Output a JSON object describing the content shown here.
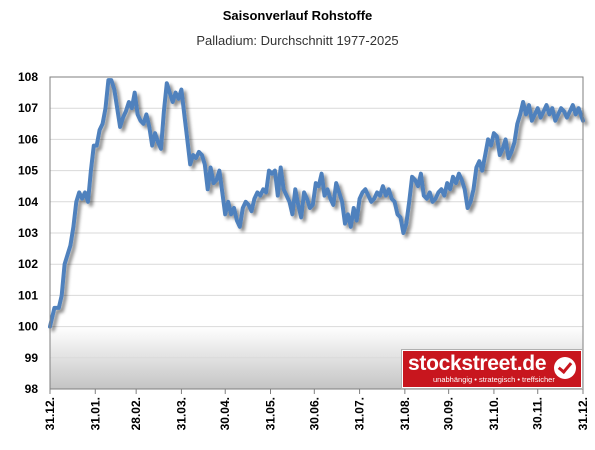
{
  "chart_data": {
    "type": "line",
    "title": "Saisonverlauf Rohstoffe",
    "subtitle": "Palladium: Durchschnitt 1977-2025",
    "xlabel": "",
    "ylabel": "",
    "ylim": [
      98,
      108
    ],
    "yticks": [
      98,
      99,
      100,
      101,
      102,
      103,
      104,
      105,
      106,
      107,
      108
    ],
    "xlim": [
      0,
      365
    ],
    "xticks": [
      {
        "x": 0,
        "label": "31.12."
      },
      {
        "x": 31,
        "label": "31.01."
      },
      {
        "x": 59,
        "label": "28.02."
      },
      {
        "x": 90,
        "label": "31.03."
      },
      {
        "x": 120,
        "label": "30.04."
      },
      {
        "x": 151,
        "label": "31.05."
      },
      {
        "x": 181,
        "label": "30.06."
      },
      {
        "x": 212,
        "label": "31.07."
      },
      {
        "x": 243,
        "label": "31.08."
      },
      {
        "x": 273,
        "label": "30.09."
      },
      {
        "x": 304,
        "label": "31.10."
      },
      {
        "x": 334,
        "label": "30.11."
      },
      {
        "x": 365,
        "label": "31.12."
      }
    ],
    "grid": true,
    "line_color": "#4f81bd",
    "series": [
      {
        "name": "",
        "x": [
          0,
          3,
          6,
          8,
          10,
          12,
          14,
          16,
          18,
          20,
          22,
          24,
          26,
          28,
          30,
          32,
          34,
          36,
          38,
          40,
          42,
          44,
          46,
          48,
          50,
          52,
          54,
          56,
          58,
          60,
          62,
          64,
          66,
          68,
          70,
          72,
          74,
          76,
          78,
          80,
          82,
          84,
          86,
          88,
          90,
          92,
          94,
          96,
          98,
          100,
          102,
          104,
          106,
          108,
          110,
          112,
          114,
          116,
          118,
          120,
          122,
          124,
          126,
          128,
          130,
          132,
          134,
          136,
          138,
          140,
          142,
          144,
          146,
          148,
          150,
          152,
          154,
          156,
          158,
          160,
          162,
          164,
          166,
          168,
          170,
          172,
          174,
          176,
          178,
          180,
          182,
          184,
          186,
          188,
          190,
          192,
          194,
          196,
          198,
          200,
          202,
          204,
          206,
          208,
          210,
          212,
          214,
          216,
          218,
          220,
          222,
          224,
          226,
          228,
          230,
          232,
          234,
          236,
          238,
          240,
          242,
          244,
          246,
          248,
          250,
          252,
          254,
          256,
          258,
          260,
          262,
          264,
          266,
          268,
          270,
          272,
          274,
          276,
          278,
          280,
          282,
          284,
          286,
          288,
          290,
          292,
          294,
          296,
          298,
          300,
          302,
          304,
          306,
          308,
          310,
          312,
          314,
          316,
          318,
          320,
          322,
          324,
          326,
          328,
          330,
          332,
          334,
          336,
          338,
          340,
          342,
          344,
          346,
          348,
          350,
          352,
          354,
          356,
          358,
          360,
          362,
          365
        ],
        "values": [
          100.0,
          100.6,
          100.6,
          101.0,
          102.0,
          102.3,
          102.6,
          103.2,
          104.0,
          104.3,
          104.1,
          104.3,
          104.0,
          105.0,
          105.8,
          105.8,
          106.3,
          106.5,
          107.0,
          107.9,
          107.9,
          107.6,
          107.0,
          106.4,
          106.7,
          106.9,
          107.2,
          107.0,
          107.5,
          106.8,
          106.6,
          106.5,
          106.8,
          106.4,
          105.8,
          106.2,
          105.9,
          105.7,
          106.9,
          107.8,
          107.5,
          107.2,
          107.5,
          107.3,
          107.6,
          106.8,
          106.0,
          105.2,
          105.5,
          105.4,
          105.6,
          105.5,
          105.2,
          104.4,
          105.1,
          104.6,
          104.7,
          105.0,
          104.3,
          103.6,
          104.0,
          103.6,
          103.8,
          103.4,
          103.2,
          103.8,
          104.0,
          103.9,
          103.7,
          104.1,
          104.3,
          104.2,
          104.4,
          104.3,
          105.0,
          104.9,
          105.0,
          104.2,
          105.1,
          104.4,
          104.2,
          104.0,
          103.6,
          104.4,
          103.9,
          103.5,
          104.3,
          104.1,
          103.8,
          103.9,
          104.6,
          104.5,
          104.9,
          104.2,
          104.4,
          104.1,
          103.9,
          104.6,
          104.3,
          104.0,
          103.3,
          103.6,
          103.2,
          103.8,
          103.4,
          104.1,
          104.3,
          104.4,
          104.2,
          104.0,
          104.1,
          104.3,
          104.2,
          104.5,
          104.2,
          104.4,
          104.1,
          104.0,
          103.6,
          103.5,
          103.0,
          103.3,
          104.0,
          104.8,
          104.7,
          104.5,
          104.9,
          104.2,
          104.1,
          104.3,
          104.0,
          104.1,
          104.3,
          104.4,
          104.2,
          104.6,
          104.4,
          104.8,
          104.6,
          104.9,
          104.7,
          104.4,
          103.8,
          104.0,
          104.4,
          105.1,
          105.3,
          105.0,
          105.5,
          106.0,
          105.8,
          106.2,
          106.1,
          105.5,
          105.7,
          106.0,
          105.4,
          105.6,
          105.9,
          106.5,
          106.8,
          107.2,
          106.8,
          107.1,
          106.6,
          106.8,
          107.0,
          106.7,
          106.9,
          107.1,
          106.8,
          107.0,
          106.6,
          106.8,
          107.0,
          106.9,
          106.7,
          106.9,
          107.1,
          106.8,
          107.0,
          106.6
        ]
      }
    ]
  },
  "logo": {
    "name": "stockstreet.de",
    "tagline": "unabhängig • strategisch • treffsicher",
    "icon": "checkmark-icon"
  }
}
